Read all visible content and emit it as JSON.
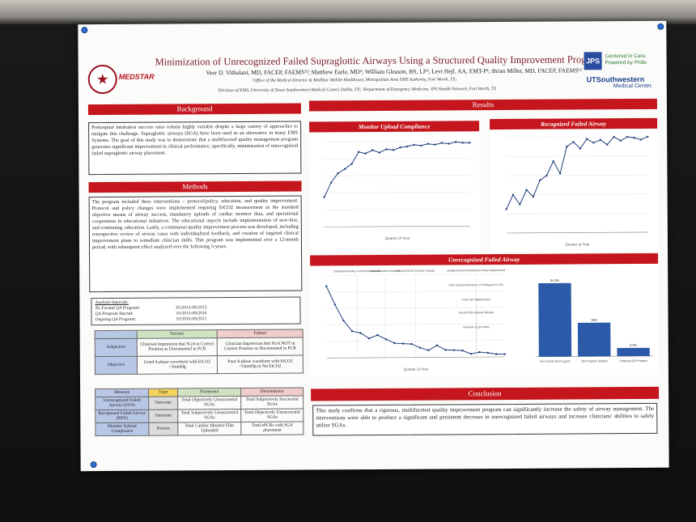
{
  "title": "Minimization of Unrecognized Failed Supraglottic Airways Using a Structured Quality Improvement Program",
  "authors": "Veer D. Vithalani, MD, FACEP, FAEMS¹²; Matthew Earle, MD²; William Gleason, BS, LP¹; Levi Hejl, AA, EMT-P¹; Brian Miller, MD, FACEP, FAEMS¹²",
  "affiliation_1": "¹Office of the Medical Director & MedStar Mobile Healthcare, Metropolitan Area EMS Authority, Fort Worth, TX;",
  "affiliation_2": "²Division of EMS, University of Texas Southwestern Medical Center, Dallas, TX; ³Department of Emergency Medicine, JPS Health Network, Fort Worth, TX",
  "logos": {
    "medstar": "MEDSTAR",
    "jps": "JPS",
    "jps_line1": "Centered in Care.",
    "jps_line2": "Powered by Pride",
    "ut": "UTSouthwestern",
    "ut_sub": "Medical Center."
  },
  "sections": {
    "background": {
      "heading": "Background",
      "text": "Prehospital intubation success rates remain highly variable despite a large variety of approaches to mitigate this challenge. Supraglottic airways (SGA) have been used as an alternative in many EMS Systems. The goal of this study was to demonstrate that a multifaceted quality management program generates significant improvement in clinical performance, specifically, minimization of unrecognized failed supraglottic airway placement."
    },
    "methods": {
      "heading": "Methods",
      "text": "The program included three interventions – protocol/policy, education, and quality improvement. Protocol and policy changes were implemented requiring EtCO2 measurement as the standard objective means of airway success, mandatory uploads of cardiac monitor data, and operational cooperation in educational initiatives. The educational aspects include implementation of new-hire, and continuing, education. Lastly, a continuous quality improvement process was developed, including retrospective review of airway cases with individualized feedback, and creation of targeted clinical improvement plans to remediate clinician skills. This program was implemented over a 12-month period, with subsequent effect analyzed over the following 5-years."
    },
    "results": {
      "heading": "Results"
    },
    "conclusion": {
      "heading": "Conclusion",
      "text": "This study confirms that a rigorous, multifaceted quality improvement program can significantly increase the safety of airway management. The interventions were able to produce a significant and persistent decrease in unrecognized failed airways and increase clinicians' abilities to safely utilize SGAs."
    }
  },
  "analysis_intervals": {
    "heading": "Analysis Intervals:",
    "rows": [
      {
        "label": "No Formal QA Program:",
        "value": "05/2013-09/2013"
      },
      {
        "label": "QA Program Started:",
        "value": "10/2013-09/2016"
      },
      {
        "label": "Ongoing QA Program:",
        "value": "10/2016-09/2021"
      }
    ]
  },
  "outcome_table": {
    "headers": [
      "",
      "Success",
      "Failure"
    ],
    "rows": [
      [
        "Subjective",
        "Clinician Impression that SGA in Correct Position as Documented in PCR",
        "Clinician Impression that SGA NOT in Correct Position as Documented in PCR"
      ],
      [
        "Objective",
        "Good 4-phase waveform with EtCO2 >5mmHg",
        "Poor 4-phase waveform with EtCO2 <5mmHg or No EtCO2"
      ]
    ]
  },
  "measure_table": {
    "headers": [
      "Measure",
      "Type",
      "Numerator",
      "Denominator"
    ],
    "rows": [
      [
        "Unrecognized Failed Airway (UFA)",
        "Outcome",
        "Total Objectively Unsuccessful SGAs",
        "Total Subjectively Successful SGAs"
      ],
      [
        "Recognized Failed Airway (RFA)",
        "Outcome",
        "Total Subjectively Unsuccessful SGAs",
        "Total Objectively Unsuccessful SGAs"
      ],
      [
        "Monitor Upload Compliance",
        "Process",
        "Total Cardiac Monitor Files Uploaded",
        "Total ePCRs with SGA placement"
      ]
    ]
  },
  "colors": {
    "red": "#c4161c",
    "blue": "#2a5aa8"
  },
  "chart_data": [
    {
      "type": "line",
      "title": "Monitor Upload Compliance",
      "xlabel": "Quarter of Year",
      "values": [
        35,
        52,
        63,
        68,
        74,
        88,
        86,
        90,
        87,
        91,
        90,
        93,
        94,
        96,
        95,
        97,
        96,
        98,
        97,
        99,
        98,
        98
      ],
      "ylim": [
        0,
        100
      ]
    },
    {
      "type": "line",
      "title": "Recognized Failed Airway",
      "xlabel": "Quarter of Year",
      "values": [
        25,
        40,
        30,
        45,
        38,
        55,
        60,
        75,
        62,
        90,
        95,
        88,
        98,
        94,
        97,
        92,
        100,
        96,
        100,
        99,
        97,
        100
      ],
      "ylim": [
        0,
        100
      ]
    },
    {
      "type": "line",
      "title": "Unrecognized Failed Airway",
      "xlabel": "Quarter of Year",
      "values": [
        30.4,
        22.6,
        15.8,
        11.3,
        10.5,
        8.2,
        9.6,
        7.8,
        6.1,
        5.9,
        5.7,
        4.1,
        3.0,
        5.1,
        3.1,
        3.0,
        2.8,
        1.4,
        2.1,
        1.8,
        1.2,
        1.2
      ],
      "annotations": [
        "Operational Policy on Monitor Uploads",
        "Initial Education Initiative",
        "Official EtCO2 Protocol Change",
        "Quality/Clinical Restrictions Policy Implemented",
        "First Clinical Restriction of Privileges for UFA",
        "Point-QA Implemented",
        "Second Educational Initiative",
        "Revision of QA Policy"
      ],
      "ylim": [
        0,
        35
      ]
    },
    {
      "type": "bar",
      "categories": [
        "No Formal QA Program",
        "QA Program Started",
        "Ongoing QA Program"
      ],
      "values": [
        34.9,
        16.0,
        3.9
      ],
      "ylim": [
        0,
        40
      ]
    }
  ]
}
